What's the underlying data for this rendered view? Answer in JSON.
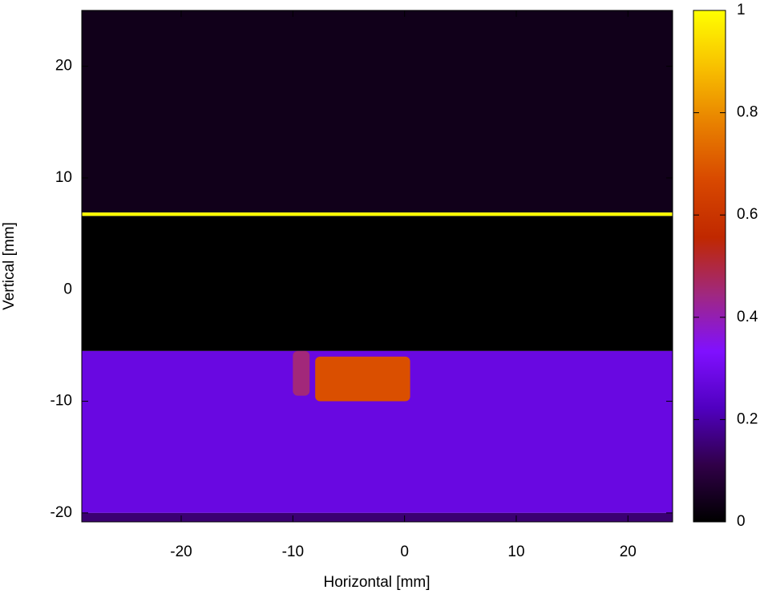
{
  "chart_data": {
    "type": "heatmap",
    "xlabel": "Horizontal [mm]",
    "ylabel": "Vertical [mm]",
    "xlim": [
      -28.9,
      24.0
    ],
    "ylim": [
      -20.8,
      25.0
    ],
    "xticks": [
      -20,
      -10,
      0,
      10,
      20
    ],
    "yticks": [
      -20,
      -10,
      0,
      10,
      20
    ],
    "clim": [
      0,
      1
    ],
    "cticks": [
      0,
      0.2,
      0.4,
      0.6,
      0.8,
      1
    ],
    "colormap": [
      "#000000",
      "#300048",
      "#5000c0",
      "#8010ff",
      "#a02880",
      "#c02800",
      "#d84800",
      "#e88000",
      "#f8c000",
      "#ffff00"
    ],
    "regions": [
      {
        "x": [
          -28.9,
          24.0
        ],
        "y": [
          6.9,
          25.0
        ],
        "value": 0.04
      },
      {
        "x": [
          -28.9,
          24.0
        ],
        "y": [
          -5.5,
          6.6
        ],
        "value": 0
      },
      {
        "x": [
          -28.9,
          24.0
        ],
        "y": [
          6.6,
          6.9
        ],
        "value": 1
      },
      {
        "x": [
          -28.9,
          24.0
        ],
        "y": [
          -20.0,
          -5.5
        ],
        "value": 0.28
      },
      {
        "x": [
          -28.9,
          24.0
        ],
        "y": [
          -20.8,
          -20.0
        ],
        "value": 0.15
      },
      {
        "x": [
          -10.0,
          -8.5
        ],
        "y": [
          -9.5,
          -5.5
        ],
        "value": 0.45
      },
      {
        "x": [
          -8.0,
          0.5
        ],
        "y": [
          -10.0,
          -6.0
        ],
        "value": 0.68
      }
    ]
  }
}
